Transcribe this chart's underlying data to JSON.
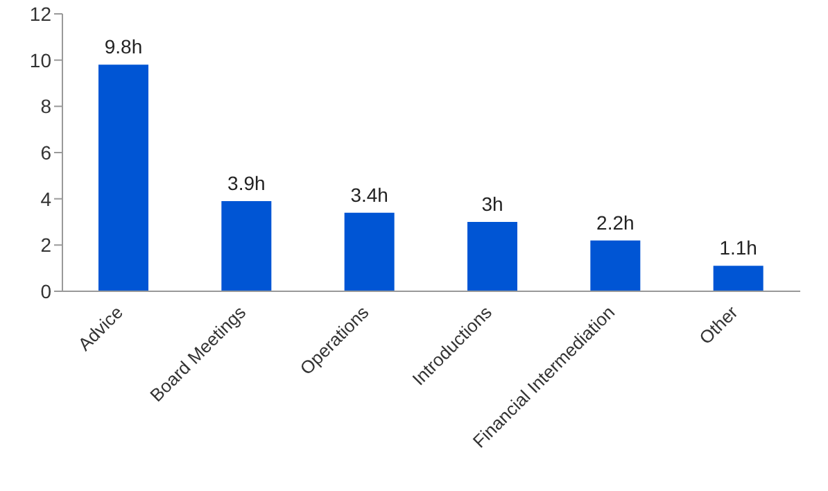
{
  "chart_data": {
    "type": "bar",
    "categories": [
      "Advice",
      "Board Meetings",
      "Operations",
      "Introductions",
      "Financial Intermediation",
      "Other"
    ],
    "values": [
      9.8,
      3.9,
      3.4,
      3,
      2.2,
      1.1
    ],
    "value_labels": [
      "9.8h",
      "3.9h",
      "3.4h",
      "3h",
      "2.2h",
      "1.1h"
    ],
    "color": "#0055d4",
    "ylim": [
      0,
      12
    ],
    "yticks": [
      0,
      2,
      4,
      6,
      8,
      10,
      12
    ],
    "grid": false
  }
}
